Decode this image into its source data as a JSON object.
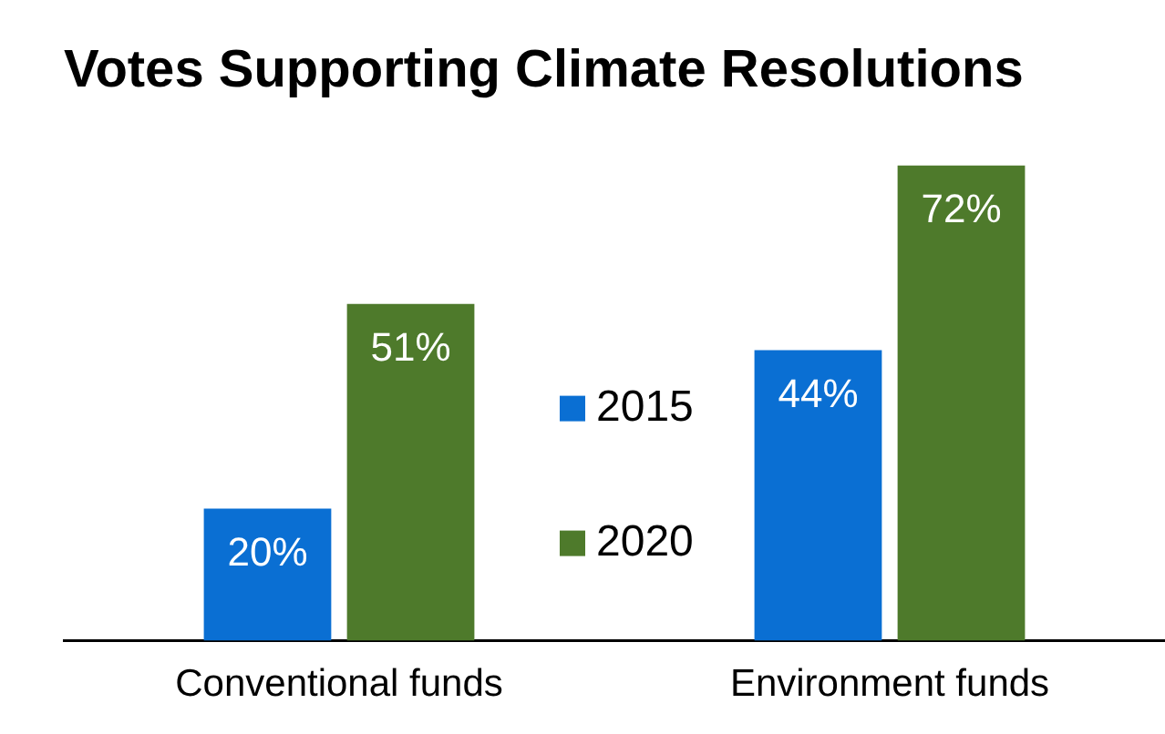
{
  "chart_data": {
    "type": "bar",
    "title": "Votes Supporting Climate Resolutions",
    "categories": [
      "Conventional funds",
      "Environment funds"
    ],
    "series": [
      {
        "name": "2015",
        "color": "#0a6fd3",
        "values": [
          20,
          44
        ],
        "value_labels": [
          "20%",
          "44%"
        ]
      },
      {
        "name": "2020",
        "color": "#4e7a2b",
        "values": [
          51,
          72
        ],
        "value_labels": [
          "51%",
          "72%"
        ]
      }
    ],
    "legend": "center",
    "tick_labels": "x",
    "grid": false
  }
}
